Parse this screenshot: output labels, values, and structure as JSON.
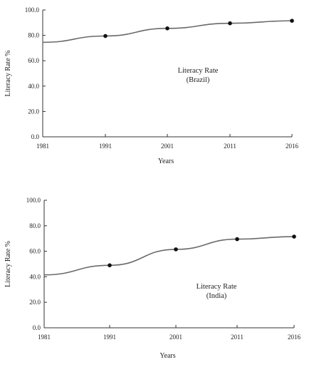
{
  "chart_data": [
    {
      "type": "line",
      "xlabel": "Years",
      "ylabel": "Literacy Rate %",
      "x": [
        "1981",
        "1991",
        "2001",
        "2011",
        "2016"
      ],
      "ylim": [
        0,
        100
      ],
      "yticks": [
        "0.0",
        "20.0",
        "40.0",
        "60.0",
        "80.0",
        "100.0"
      ],
      "annotation": [
        "Literacy Rate",
        "(Brazil)"
      ],
      "series": [
        {
          "values": [
            74.5,
            79.5,
            85.5,
            89.5,
            91.5
          ],
          "markers": [
            false,
            true,
            true,
            true,
            true
          ]
        }
      ],
      "grid": false
    },
    {
      "type": "line",
      "xlabel": "Years",
      "ylabel": "Literacy Rate %",
      "x": [
        "1981",
        "1991",
        "2001",
        "2011",
        "2016"
      ],
      "ylim": [
        0,
        100
      ],
      "yticks": [
        "0.0",
        "20.0",
        "40.0",
        "60.0",
        "80.0",
        "100.0"
      ],
      "annotation": [
        "Literacy Rate",
        "(India)"
      ],
      "series": [
        {
          "values": [
            41.5,
            49,
            61.5,
            69.5,
            71.5
          ],
          "markers": [
            false,
            true,
            true,
            true,
            true
          ]
        }
      ],
      "grid": false
    }
  ]
}
